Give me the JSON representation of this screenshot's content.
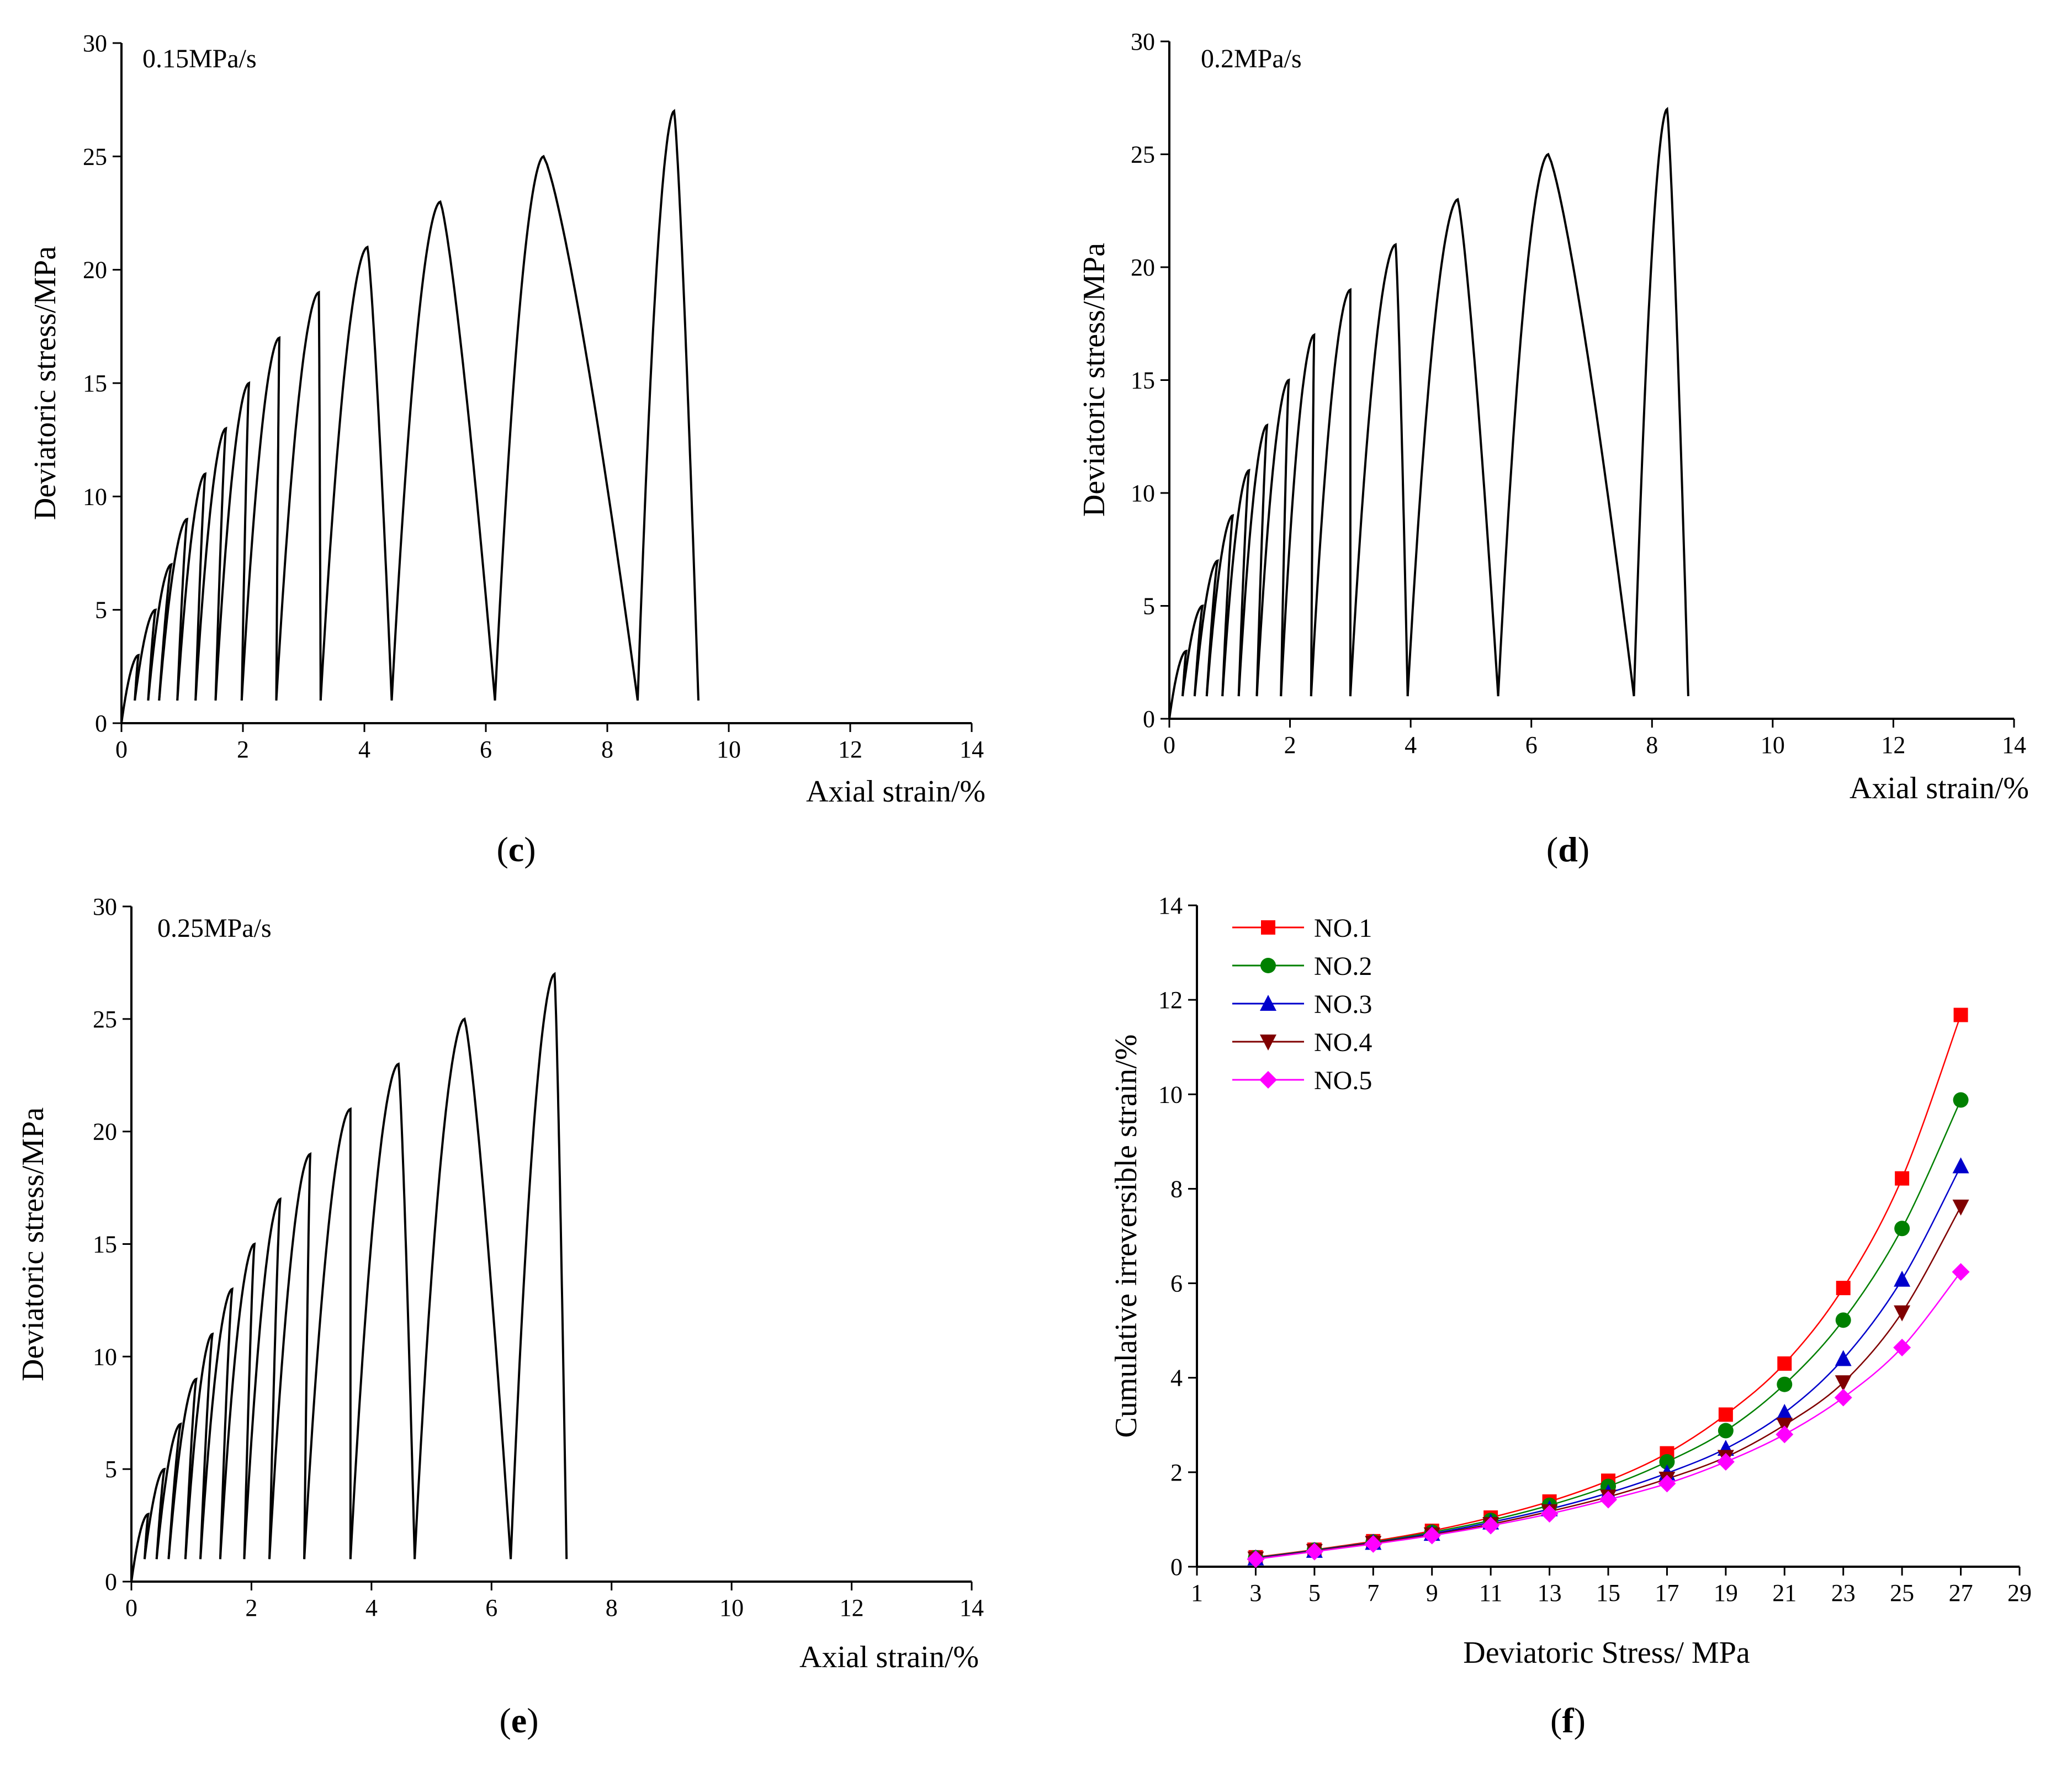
{
  "chart_data": [
    {
      "panel": "c",
      "type": "line",
      "title": "",
      "annotation": "0.15MPa/s",
      "xlabel": "Axial strain/%",
      "ylabel": "Deviatoric stress/MPa",
      "xlim": [
        0,
        14
      ],
      "ylim": [
        0,
        30
      ],
      "xticks": [
        "0",
        "2",
        "4",
        "6",
        "8",
        "10",
        "12",
        "14"
      ],
      "yticks": [
        "0",
        "5",
        "10",
        "15",
        "20",
        "25",
        "30"
      ],
      "cycles": [
        {
          "start_strain": 0.0,
          "peak_strain": 0.28,
          "peak_stress": 3,
          "end_strain": 0.22
        },
        {
          "start_strain": 0.22,
          "peak_strain": 0.56,
          "peak_stress": 5,
          "end_strain": 0.44
        },
        {
          "start_strain": 0.44,
          "peak_strain": 0.82,
          "peak_stress": 7,
          "end_strain": 0.62
        },
        {
          "start_strain": 0.62,
          "peak_strain": 1.08,
          "peak_stress": 9,
          "end_strain": 0.92
        },
        {
          "start_strain": 0.92,
          "peak_strain": 1.38,
          "peak_stress": 11,
          "end_strain": 1.22
        },
        {
          "start_strain": 1.22,
          "peak_strain": 1.72,
          "peak_stress": 13,
          "end_strain": 1.55
        },
        {
          "start_strain": 1.55,
          "peak_strain": 2.1,
          "peak_stress": 15,
          "end_strain": 1.98
        },
        {
          "start_strain": 1.98,
          "peak_strain": 2.6,
          "peak_stress": 17,
          "end_strain": 2.55
        },
        {
          "start_strain": 2.55,
          "peak_strain": 3.25,
          "peak_stress": 19,
          "end_strain": 3.28
        },
        {
          "start_strain": 3.28,
          "peak_strain": 4.05,
          "peak_stress": 21,
          "end_strain": 4.45
        },
        {
          "start_strain": 4.45,
          "peak_strain": 5.25,
          "peak_stress": 23,
          "end_strain": 6.15
        },
        {
          "start_strain": 6.15,
          "peak_strain": 6.95,
          "peak_stress": 25,
          "end_strain": 8.5
        },
        {
          "start_strain": 8.5,
          "peak_strain": 9.1,
          "peak_stress": 27,
          "end_strain": 9.5
        }
      ]
    },
    {
      "panel": "d",
      "type": "line",
      "title": "",
      "annotation": "0.2MPa/s",
      "xlabel": "Axial strain/%",
      "ylabel": "Deviatoric stress/MPa",
      "xlim": [
        0,
        14
      ],
      "ylim": [
        0,
        30
      ],
      "xticks": [
        "0",
        "2",
        "4",
        "6",
        "8",
        "10",
        "12",
        "14"
      ],
      "yticks": [
        "0",
        "5",
        "10",
        "15",
        "20",
        "25",
        "30"
      ],
      "cycles": [
        {
          "start_strain": 0.0,
          "peak_strain": 0.28,
          "peak_stress": 3,
          "end_strain": 0.22
        },
        {
          "start_strain": 0.22,
          "peak_strain": 0.55,
          "peak_stress": 5,
          "end_strain": 0.42
        },
        {
          "start_strain": 0.42,
          "peak_strain": 0.8,
          "peak_stress": 7,
          "end_strain": 0.62
        },
        {
          "start_strain": 0.62,
          "peak_strain": 1.05,
          "peak_stress": 9,
          "end_strain": 0.88
        },
        {
          "start_strain": 0.88,
          "peak_strain": 1.32,
          "peak_stress": 11,
          "end_strain": 1.15
        },
        {
          "start_strain": 1.15,
          "peak_strain": 1.62,
          "peak_stress": 13,
          "end_strain": 1.45
        },
        {
          "start_strain": 1.45,
          "peak_strain": 1.98,
          "peak_stress": 15,
          "end_strain": 1.85
        },
        {
          "start_strain": 1.85,
          "peak_strain": 2.4,
          "peak_stress": 17,
          "end_strain": 2.35
        },
        {
          "start_strain": 2.35,
          "peak_strain": 3.0,
          "peak_stress": 19,
          "end_strain": 3.0
        },
        {
          "start_strain": 3.0,
          "peak_strain": 3.75,
          "peak_stress": 21,
          "end_strain": 3.95
        },
        {
          "start_strain": 3.95,
          "peak_strain": 4.78,
          "peak_stress": 23,
          "end_strain": 5.45
        },
        {
          "start_strain": 5.45,
          "peak_strain": 6.28,
          "peak_stress": 25,
          "end_strain": 7.7
        },
        {
          "start_strain": 7.7,
          "peak_strain": 8.25,
          "peak_stress": 27,
          "end_strain": 8.6
        }
      ]
    },
    {
      "panel": "e",
      "type": "line",
      "title": "",
      "annotation": "0.25MPa/s",
      "xlabel": "Axial strain/%",
      "ylabel": "Deviatoric stress/MPa",
      "xlim": [
        0,
        14
      ],
      "ylim": [
        0,
        30
      ],
      "xticks": [
        "0",
        "2",
        "4",
        "6",
        "8",
        "10",
        "12",
        "14"
      ],
      "yticks": [
        "0",
        "5",
        "10",
        "15",
        "20",
        "25",
        "30"
      ],
      "cycles": [
        {
          "start_strain": 0.0,
          "peak_strain": 0.28,
          "peak_stress": 3,
          "end_strain": 0.22
        },
        {
          "start_strain": 0.22,
          "peak_strain": 0.55,
          "peak_stress": 5,
          "end_strain": 0.42
        },
        {
          "start_strain": 0.42,
          "peak_strain": 0.82,
          "peak_stress": 7,
          "end_strain": 0.62
        },
        {
          "start_strain": 0.62,
          "peak_strain": 1.08,
          "peak_stress": 9,
          "end_strain": 0.9
        },
        {
          "start_strain": 0.9,
          "peak_strain": 1.35,
          "peak_stress": 11,
          "end_strain": 1.15
        },
        {
          "start_strain": 1.15,
          "peak_strain": 1.68,
          "peak_stress": 13,
          "end_strain": 1.48
        },
        {
          "start_strain": 1.48,
          "peak_strain": 2.05,
          "peak_stress": 15,
          "end_strain": 1.88
        },
        {
          "start_strain": 1.88,
          "peak_strain": 2.48,
          "peak_stress": 17,
          "end_strain": 2.3
        },
        {
          "start_strain": 2.3,
          "peak_strain": 2.98,
          "peak_stress": 19,
          "end_strain": 2.88
        },
        {
          "start_strain": 2.88,
          "peak_strain": 3.65,
          "peak_stress": 21,
          "end_strain": 3.65
        },
        {
          "start_strain": 3.65,
          "peak_strain": 4.45,
          "peak_stress": 23,
          "end_strain": 4.72
        },
        {
          "start_strain": 4.72,
          "peak_strain": 5.55,
          "peak_stress": 25,
          "end_strain": 6.32
        },
        {
          "start_strain": 6.32,
          "peak_strain": 7.05,
          "peak_stress": 27,
          "end_strain": 7.25
        }
      ]
    },
    {
      "panel": "f",
      "type": "line",
      "title": "",
      "xlabel": "Deviatoric Stress/ MPa",
      "ylabel": "Cumulative irreversible strain/%",
      "xlim": [
        1,
        29
      ],
      "ylim": [
        0,
        14
      ],
      "xticks": [
        "1",
        "3",
        "5",
        "7",
        "9",
        "11",
        "13",
        "15",
        "17",
        "19",
        "21",
        "23",
        "25",
        "27",
        "29"
      ],
      "yticks": [
        "0",
        "2",
        "4",
        "6",
        "8",
        "10",
        "12",
        "14"
      ],
      "legend_position": "top-left",
      "x": [
        3,
        5,
        7,
        9,
        11,
        13,
        15,
        17,
        19,
        21,
        23,
        25,
        27
      ],
      "series": [
        {
          "name": "NO.1",
          "color": "#ff0000",
          "marker": "square",
          "values": [
            0.2,
            0.36,
            0.54,
            0.76,
            1.04,
            1.38,
            1.82,
            2.4,
            3.22,
            4.3,
            5.9,
            8.22,
            11.68
          ]
        },
        {
          "name": "NO.2",
          "color": "#008000",
          "marker": "circle",
          "values": [
            0.19,
            0.35,
            0.52,
            0.73,
            0.98,
            1.3,
            1.7,
            2.22,
            2.88,
            3.86,
            5.22,
            7.16,
            9.88
          ]
        },
        {
          "name": "NO.3",
          "color": "#0000cc",
          "marker": "triangle-up",
          "values": [
            0.18,
            0.34,
            0.51,
            0.7,
            0.94,
            1.22,
            1.56,
            1.98,
            2.5,
            3.26,
            4.4,
            6.08,
            8.48
          ]
        },
        {
          "name": "NO.4",
          "color": "#800000",
          "marker": "triangle-down",
          "values": [
            0.17,
            0.33,
            0.5,
            0.68,
            0.9,
            1.17,
            1.48,
            1.86,
            2.32,
            3.0,
            3.9,
            5.38,
            7.62
          ]
        },
        {
          "name": "NO.5",
          "color": "#ff00ff",
          "marker": "diamond",
          "values": [
            0.16,
            0.32,
            0.48,
            0.66,
            0.87,
            1.12,
            1.42,
            1.76,
            2.22,
            2.8,
            3.58,
            4.64,
            6.24
          ]
        }
      ]
    }
  ],
  "labels": {
    "c": {
      "open": "(",
      "letter": "c",
      "close": ")"
    },
    "d": {
      "open": "(",
      "letter": "d",
      "close": ")"
    },
    "e": {
      "open": "(",
      "letter": "e",
      "close": ")"
    },
    "f": {
      "open": "(",
      "letter": "f",
      "close": ")"
    }
  }
}
